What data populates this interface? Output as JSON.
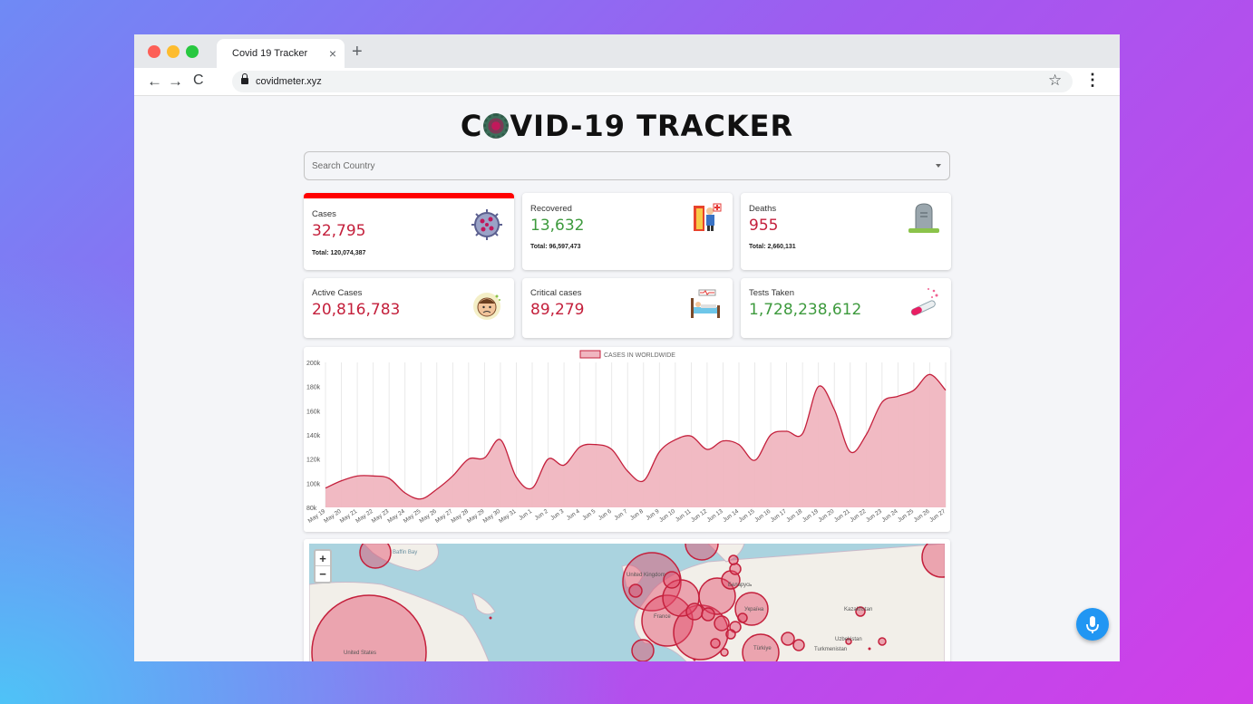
{
  "browser": {
    "tab_title": "Covid 19 Tracker",
    "tab_close": "×",
    "new_tab": "+",
    "url": "covidmeter.xyz",
    "back": "←",
    "forward": "→",
    "reload": "C",
    "star": "☆",
    "menu": "⋮"
  },
  "header": {
    "title_left": "C",
    "title_right": "VID-19 TRACKER"
  },
  "search": {
    "placeholder": "Search Country"
  },
  "cards": [
    {
      "label": "Cases",
      "value": "32,795",
      "total": "Total: 120,074,387",
      "icon": "virus-icon"
    },
    {
      "label": "Recovered",
      "value": "13,632",
      "total": "Total: 96,597,473",
      "icon": "recovered-person-icon"
    },
    {
      "label": "Deaths",
      "value": "955",
      "total": "Total: 2,660,131",
      "icon": "gravestone-icon"
    },
    {
      "label": "Active Cases",
      "value": "20,816,783",
      "icon": "sick-face-icon"
    },
    {
      "label": "Critical cases",
      "value": "89,279",
      "icon": "hospital-bed-icon"
    },
    {
      "label": "Tests Taken",
      "value": "1,728,238,612",
      "icon": "test-tube-icon"
    }
  ],
  "colors": {
    "accent_red": "#c4203c",
    "green": "#3d9a3d",
    "selected_bar": "#ff0000",
    "area_fill": "#f0b6c0",
    "area_stroke": "#c4203c"
  },
  "chart_data": {
    "type": "area",
    "legend": "CASES IN WORLDWIDE",
    "legend_position": "top-center",
    "categories": [
      "May 19",
      "May 20",
      "May 21",
      "May 22",
      "May 23",
      "May 24",
      "May 25",
      "May 26",
      "May 27",
      "May 28",
      "May 29",
      "May 30",
      "May 31",
      "Jun 1",
      "Jun 2",
      "Jun 3",
      "Jun 4",
      "Jun 5",
      "Jun 6",
      "Jun 7",
      "Jun 8",
      "Jun 9",
      "Jun 10",
      "Jun 11",
      "Jun 12",
      "Jun 13",
      "Jun 14",
      "Jun 15",
      "Jun 16",
      "Jun 17",
      "Jun 18",
      "Jun 19",
      "Jun 20",
      "Jun 21",
      "Jun 22",
      "Jun 23",
      "Jun 24",
      "Jun 25",
      "Jun 26",
      "Jun 27"
    ],
    "series": [
      {
        "name": "CASES IN WORLDWIDE",
        "values": [
          96000,
          102000,
          106000,
          106000,
          104000,
          92000,
          87000,
          95000,
          106000,
          120000,
          121000,
          136000,
          105000,
          96000,
          120000,
          115000,
          130000,
          132000,
          128000,
          110000,
          102000,
          126000,
          136000,
          139000,
          128000,
          135000,
          132000,
          119000,
          140000,
          143000,
          141000,
          180000,
          161000,
          126000,
          140000,
          167000,
          172000,
          177000,
          190000,
          177000
        ]
      }
    ],
    "yticks": [
      "200k",
      "180k",
      "160k",
      "140k",
      "120k",
      "100k",
      "80k"
    ],
    "ylim": [
      80000,
      200000
    ],
    "grid": "vertical"
  },
  "map": {
    "zoom_in": "+",
    "zoom_out": "−",
    "labels": [
      "United States",
      "United Kingdom",
      "France",
      "Türkiye",
      "Turkmenistan",
      "Uzbekistan",
      "Kazakhstan",
      "Беларусь",
      "Україна",
      "Baffin Bay"
    ]
  }
}
